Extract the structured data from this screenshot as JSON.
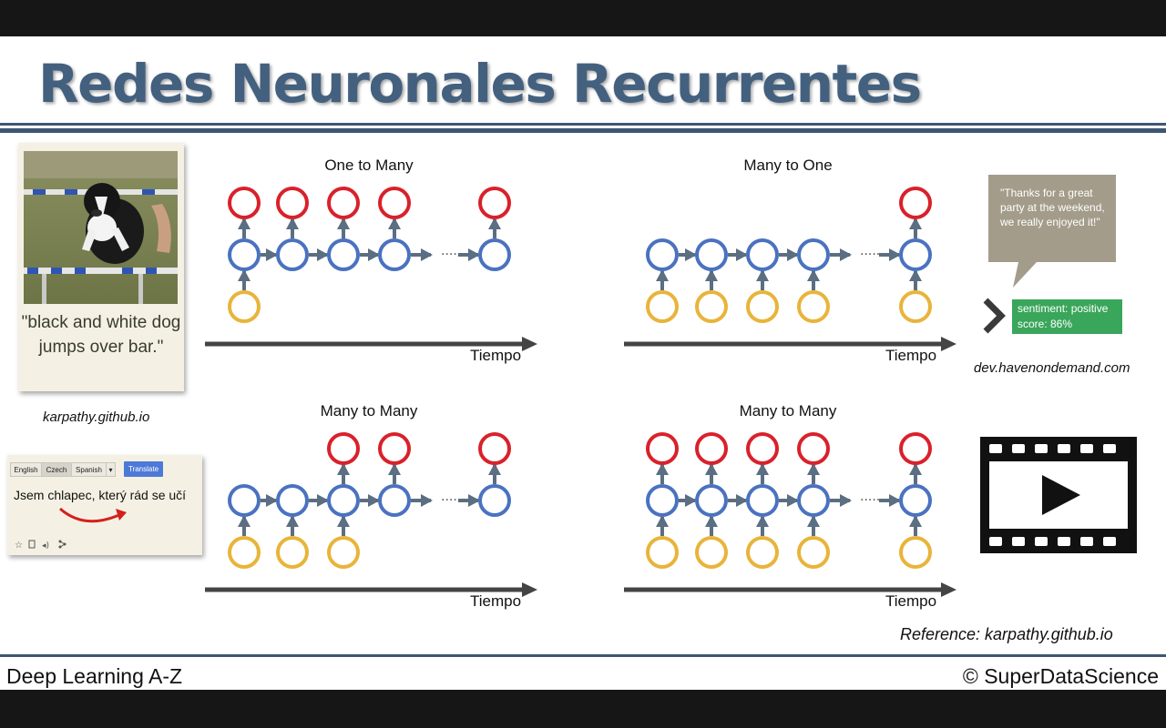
{
  "title": "Redes Neuronales Recurrentes",
  "footer": {
    "left": "Deep Learning A-Z",
    "right": "© SuperDataScience"
  },
  "reference": "Reference: karpathy.github.io",
  "image_captioning": {
    "caption": "\"black and white dog jumps over bar.\"",
    "source": "karpathy.github.io"
  },
  "sentiment": {
    "quote": "\"Thanks for a great party at the weekend, we really enjoyed it!\"",
    "result_line1": "sentiment: positive",
    "result_line2": "score: 86%",
    "source": "dev.havenondemand.com"
  },
  "translation": {
    "languages": [
      "English",
      "Czech",
      "Spanish"
    ],
    "button": "Translate",
    "text": "Jsem chlapec, který rád se učí"
  },
  "diagrams": [
    {
      "title": "One to Many",
      "time_label": "Tiempo",
      "inputs": [
        1,
        0,
        0,
        0,
        0
      ],
      "outputs": [
        1,
        1,
        1,
        1,
        1
      ]
    },
    {
      "title": "Many to One",
      "time_label": "Tiempo",
      "inputs": [
        1,
        1,
        1,
        1,
        1
      ],
      "outputs": [
        0,
        0,
        0,
        0,
        1
      ]
    },
    {
      "title": "Many to Many",
      "time_label": "Tiempo",
      "inputs": [
        1,
        1,
        1,
        0,
        0
      ],
      "outputs": [
        0,
        0,
        1,
        1,
        1
      ]
    },
    {
      "title": "Many to Many",
      "time_label": "Tiempo",
      "inputs": [
        1,
        1,
        1,
        1,
        1
      ],
      "outputs": [
        1,
        1,
        1,
        1,
        1
      ]
    }
  ],
  "colors": {
    "title": "#44607f",
    "input_node": "#e8b43a",
    "hidden_node": "#4a72c0",
    "output_node": "#d9212b",
    "arrow": "#5b6e82",
    "timeline": "#444444",
    "sentiment_box": "#3aa65b",
    "speech_bubble": "#a39c8a"
  },
  "icons": [
    "dog-photo",
    "speech-bubble-icon",
    "chevron-right-icon",
    "film-play-icon",
    "star-icon",
    "copy-icon",
    "speaker-icon",
    "share-icon"
  ]
}
